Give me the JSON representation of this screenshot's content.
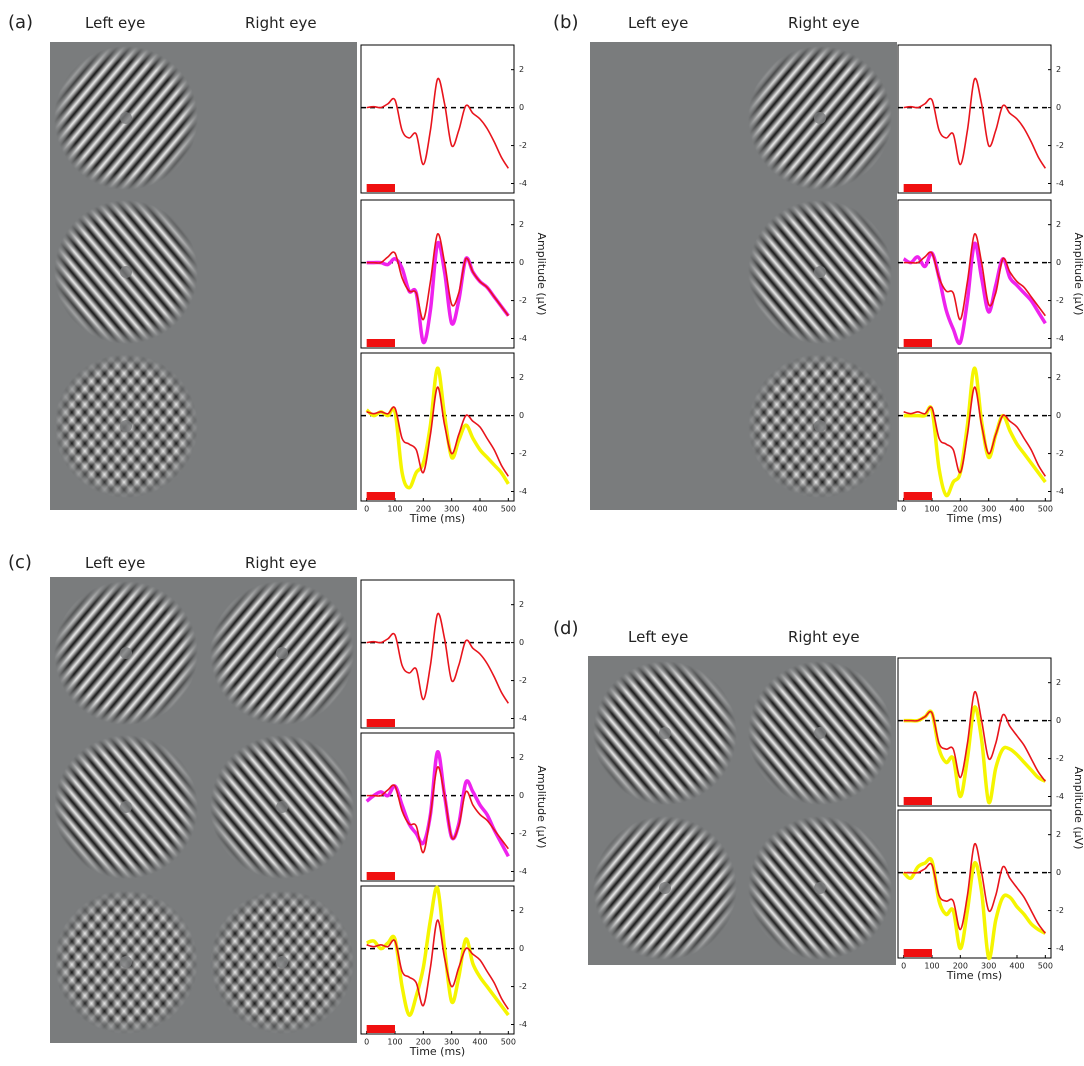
{
  "panels": [
    {
      "label": "(a)",
      "left_eye": "Left eye",
      "right_eye": "Right eye"
    },
    {
      "label": "(b)",
      "left_eye": "Left eye",
      "right_eye": "Right eye"
    },
    {
      "label": "(c)",
      "left_eye": "Left eye",
      "right_eye": "Right eye"
    },
    {
      "label": "(d)",
      "left_eye": "Left eye",
      "right_eye": "Right eye"
    }
  ],
  "chart_data": [
    {
      "type": "line",
      "x": [
        0,
        25,
        50,
        75,
        100,
        125,
        150,
        175,
        200,
        225,
        250,
        275,
        300,
        325,
        350,
        375,
        400,
        425,
        450,
        475,
        500
      ],
      "xlim": [
        -20,
        520
      ],
      "ylim": [
        -4.5,
        3.3
      ],
      "yticks": [
        2,
        0,
        -2,
        -4
      ],
      "stimulus_window": [
        0,
        100
      ],
      "series": [
        {
          "color": "#e8141c",
          "values": [
            0,
            0.05,
            0,
            0.2,
            0.4,
            -1.2,
            -1.6,
            -1.4,
            -3.0,
            -1.2,
            1.5,
            0.2,
            -2.0,
            -1.2,
            0.1,
            -0.3,
            -0.6,
            -1.1,
            -1.8,
            -2.6,
            -3.2
          ]
        }
      ]
    },
    {
      "type": "line",
      "x": [
        0,
        25,
        50,
        75,
        100,
        125,
        150,
        175,
        200,
        225,
        250,
        275,
        300,
        325,
        350,
        375,
        400,
        425,
        450,
        475,
        500
      ],
      "xlim": [
        -20,
        520
      ],
      "ylim": [
        -4.5,
        3.3
      ],
      "yticks": [
        2,
        0,
        -2,
        -4
      ],
      "stimulus_window": [
        0,
        100
      ],
      "ylabel": "Amplitude (µV)",
      "series": [
        {
          "color": "#ee22ee",
          "values": [
            0,
            0,
            0,
            -0.1,
            0.2,
            -0.3,
            -1.5,
            -1.6,
            -4.2,
            -2.5,
            1.0,
            -0.5,
            -3.2,
            -2.0,
            0.2,
            -0.5,
            -1.0,
            -1.3,
            -1.8,
            -2.3,
            -2.8
          ]
        },
        {
          "color": "#e8141c",
          "values": [
            0,
            0,
            0,
            0.3,
            0.5,
            -0.8,
            -1.5,
            -1.6,
            -3.0,
            -1.0,
            1.5,
            0,
            -2.2,
            -1.6,
            0.2,
            -0.5,
            -1.0,
            -1.3,
            -1.8,
            -2.3,
            -2.8
          ]
        }
      ]
    },
    {
      "type": "line",
      "x": [
        0,
        25,
        50,
        75,
        100,
        125,
        150,
        175,
        200,
        225,
        250,
        275,
        300,
        325,
        350,
        375,
        400,
        425,
        450,
        475,
        500
      ],
      "xlim": [
        -20,
        520
      ],
      "ylim": [
        -4.5,
        3.3
      ],
      "yticks": [
        2,
        0,
        -2,
        -4
      ],
      "xticks": [
        0,
        100,
        200,
        300,
        400,
        500
      ],
      "stimulus_window": [
        0,
        100
      ],
      "xlabel": "Time (ms)",
      "series": [
        {
          "color": "#f5f500",
          "values": [
            0.3,
            0,
            0.2,
            0,
            0.2,
            -3.0,
            -3.8,
            -3.0,
            -2.5,
            -0.5,
            2.5,
            0,
            -2.2,
            -1.3,
            -0.5,
            -1.2,
            -1.8,
            -2.2,
            -2.6,
            -3.0,
            -3.6
          ]
        },
        {
          "color": "#e8141c",
          "values": [
            0.2,
            0.1,
            0.2,
            0.1,
            0.4,
            -1.2,
            -1.5,
            -1.8,
            -3.0,
            -1.0,
            1.5,
            -0.5,
            -2.0,
            -1.0,
            0,
            -0.3,
            -0.6,
            -1.2,
            -1.8,
            -2.6,
            -3.2
          ]
        }
      ]
    },
    {
      "type": "line",
      "x": [
        0,
        25,
        50,
        75,
        100,
        125,
        150,
        175,
        200,
        225,
        250,
        275,
        300,
        325,
        350,
        375,
        400,
        425,
        450,
        475,
        500
      ],
      "xlim": [
        -20,
        520
      ],
      "ylim": [
        -4.5,
        3.3
      ],
      "yticks": [
        2,
        0,
        -2,
        -4
      ],
      "stimulus_window": [
        0,
        100
      ],
      "series": [
        {
          "color": "#e8141c",
          "values": [
            0,
            0.05,
            0,
            0.2,
            0.4,
            -1.2,
            -1.6,
            -1.4,
            -3.0,
            -1.2,
            1.5,
            0.2,
            -2.0,
            -1.2,
            0.1,
            -0.3,
            -0.6,
            -1.1,
            -1.8,
            -2.6,
            -3.2
          ]
        }
      ]
    },
    {
      "type": "line",
      "x": [
        0,
        25,
        50,
        75,
        100,
        125,
        150,
        175,
        200,
        225,
        250,
        275,
        300,
        325,
        350,
        375,
        400,
        425,
        450,
        475,
        500
      ],
      "xlim": [
        -20,
        520
      ],
      "ylim": [
        -4.5,
        3.3
      ],
      "yticks": [
        2,
        0,
        -2,
        -4
      ],
      "stimulus_window": [
        0,
        100
      ],
      "ylabel": "Amplitude (µV)",
      "series": [
        {
          "color": "#ee22ee",
          "values": [
            0.2,
            0,
            0.3,
            -0.2,
            0.5,
            -0.8,
            -2.5,
            -3.5,
            -4.2,
            -2.0,
            1.0,
            -0.8,
            -2.6,
            -1.2,
            0.2,
            -0.8,
            -1.2,
            -1.6,
            -2.0,
            -2.6,
            -3.2
          ]
        },
        {
          "color": "#e8141c",
          "values": [
            0,
            0,
            0,
            0.3,
            0.5,
            -0.8,
            -1.5,
            -1.6,
            -3.0,
            -1.0,
            1.5,
            0,
            -2.2,
            -1.6,
            0.2,
            -0.5,
            -1.0,
            -1.3,
            -1.8,
            -2.3,
            -2.8
          ]
        }
      ]
    },
    {
      "type": "line",
      "x": [
        0,
        25,
        50,
        75,
        100,
        125,
        150,
        175,
        200,
        225,
        250,
        275,
        300,
        325,
        350,
        375,
        400,
        425,
        450,
        475,
        500
      ],
      "xlim": [
        -20,
        520
      ],
      "ylim": [
        -4.5,
        3.3
      ],
      "yticks": [
        2,
        0,
        -2,
        -4
      ],
      "xticks": [
        0,
        100,
        200,
        300,
        400,
        500
      ],
      "stimulus_window": [
        0,
        100
      ],
      "xlabel": "Time (ms)",
      "series": [
        {
          "color": "#f5f500",
          "values": [
            0,
            0,
            0,
            0,
            0.3,
            -2.8,
            -4.2,
            -3.5,
            -3.0,
            -0.5,
            2.5,
            -0.3,
            -2.2,
            -1.0,
            0,
            -0.8,
            -1.5,
            -2.0,
            -2.5,
            -3.0,
            -3.5
          ]
        },
        {
          "color": "#e8141c",
          "values": [
            0.2,
            0.1,
            0.2,
            0.1,
            0.4,
            -1.2,
            -1.5,
            -1.8,
            -3.0,
            -1.0,
            1.5,
            -0.5,
            -2.0,
            -1.0,
            0,
            -0.3,
            -0.6,
            -1.2,
            -1.8,
            -2.6,
            -3.2
          ]
        }
      ]
    },
    {
      "type": "line",
      "x": [
        0,
        25,
        50,
        75,
        100,
        125,
        150,
        175,
        200,
        225,
        250,
        275,
        300,
        325,
        350,
        375,
        400,
        425,
        450,
        475,
        500
      ],
      "xlim": [
        -20,
        520
      ],
      "ylim": [
        -4.5,
        3.3
      ],
      "yticks": [
        2,
        0,
        -2,
        -4
      ],
      "stimulus_window": [
        0,
        100
      ],
      "series": [
        {
          "color": "#e8141c",
          "values": [
            0,
            0.05,
            0,
            0.2,
            0.4,
            -1.2,
            -1.6,
            -1.4,
            -3.0,
            -1.2,
            1.5,
            0.2,
            -2.0,
            -1.2,
            0.1,
            -0.3,
            -0.6,
            -1.1,
            -1.8,
            -2.6,
            -3.2
          ]
        }
      ]
    },
    {
      "type": "line",
      "x": [
        0,
        25,
        50,
        75,
        100,
        125,
        150,
        175,
        200,
        225,
        250,
        275,
        300,
        325,
        350,
        375,
        400,
        425,
        450,
        475,
        500
      ],
      "xlim": [
        -20,
        520
      ],
      "ylim": [
        -4.5,
        3.3
      ],
      "yticks": [
        2,
        0,
        -2,
        -4
      ],
      "stimulus_window": [
        0,
        100
      ],
      "ylabel": "Amplitude (µV)",
      "series": [
        {
          "color": "#ee22ee",
          "values": [
            -0.3,
            0,
            0.2,
            0,
            0.5,
            -0.5,
            -1.5,
            -2.0,
            -2.5,
            -1.0,
            2.3,
            0,
            -2.2,
            -1.5,
            0.7,
            0.2,
            -0.5,
            -1.0,
            -1.8,
            -2.5,
            -3.2
          ]
        },
        {
          "color": "#e8141c",
          "values": [
            0,
            0,
            0,
            0.3,
            0.5,
            -0.8,
            -1.5,
            -1.6,
            -3.0,
            -1.0,
            1.5,
            0,
            -2.2,
            -1.6,
            0.2,
            -0.5,
            -1.0,
            -1.3,
            -1.8,
            -2.3,
            -2.8
          ]
        }
      ]
    },
    {
      "type": "line",
      "x": [
        0,
        25,
        50,
        75,
        100,
        125,
        150,
        175,
        200,
        225,
        250,
        275,
        300,
        325,
        350,
        375,
        400,
        425,
        450,
        475,
        500
      ],
      "xlim": [
        -20,
        520
      ],
      "ylim": [
        -4.5,
        3.3
      ],
      "yticks": [
        2,
        0,
        -2,
        -4
      ],
      "xticks": [
        0,
        100,
        200,
        300,
        400,
        500
      ],
      "stimulus_window": [
        0,
        100
      ],
      "xlabel": "Time (ms)",
      "series": [
        {
          "color": "#f5f500",
          "values": [
            0.3,
            0.4,
            0,
            0.3,
            0.5,
            -2.0,
            -3.5,
            -2.5,
            -1.0,
            1.5,
            3.2,
            0,
            -2.8,
            -1.5,
            0.5,
            -0.8,
            -1.5,
            -2,
            -2.5,
            -3,
            -3.5
          ]
        },
        {
          "color": "#e8141c",
          "values": [
            0.2,
            0.1,
            0.2,
            0.1,
            0.4,
            -1.2,
            -1.5,
            -1.8,
            -3.0,
            -1.0,
            1.5,
            -0.5,
            -2.0,
            -1.0,
            0,
            -0.3,
            -0.6,
            -1.2,
            -1.8,
            -2.6,
            -3.2
          ]
        }
      ]
    },
    {
      "type": "line",
      "x": [
        0,
        25,
        50,
        75,
        100,
        125,
        150,
        175,
        200,
        225,
        250,
        275,
        300,
        325,
        350,
        375,
        400,
        425,
        450,
        475,
        500
      ],
      "xlim": [
        -20,
        520
      ],
      "ylim": [
        -4.5,
        3.3
      ],
      "yticks": [
        2,
        0,
        -2,
        -4
      ],
      "stimulus_window": [
        0,
        100
      ],
      "ylabel": "Amplitude (µV)",
      "series": [
        {
          "color": "#f5f500",
          "values": [
            0,
            0,
            0,
            0.2,
            0.4,
            -1.5,
            -2.2,
            -2.0,
            -4.0,
            -2.0,
            0.7,
            -1.0,
            -4.3,
            -2.5,
            -1.5,
            -1.5,
            -1.8,
            -2.2,
            -2.6,
            -3.0,
            -3.2
          ]
        },
        {
          "color": "#e8141c",
          "values": [
            0,
            0,
            0,
            0.2,
            0.4,
            -1.2,
            -1.5,
            -1.5,
            -3.0,
            -1.2,
            1.5,
            0,
            -2.0,
            -1.2,
            0.3,
            -0.3,
            -0.8,
            -1.3,
            -2.0,
            -2.7,
            -3.2
          ]
        }
      ]
    },
    {
      "type": "line",
      "x": [
        0,
        25,
        50,
        75,
        100,
        125,
        150,
        175,
        200,
        225,
        250,
        275,
        300,
        325,
        350,
        375,
        400,
        425,
        450,
        475,
        500
      ],
      "xlim": [
        -20,
        520
      ],
      "ylim": [
        -4.5,
        3.3
      ],
      "yticks": [
        2,
        0,
        -2,
        -4
      ],
      "xticks": [
        0,
        100,
        200,
        300,
        400,
        500
      ],
      "stimulus_window": [
        0,
        100
      ],
      "xlabel": "Time (ms)",
      "series": [
        {
          "color": "#f5f500",
          "values": [
            0,
            -0.3,
            0.3,
            0.5,
            0.6,
            -1.5,
            -2.2,
            -2.0,
            -4.0,
            -2.0,
            0.5,
            -1.0,
            -4.5,
            -2.5,
            -1.3,
            -1.3,
            -1.8,
            -2.2,
            -2.7,
            -3.0,
            -3.2
          ]
        },
        {
          "color": "#e8141c",
          "values": [
            0,
            0,
            0,
            0.2,
            0.4,
            -1.2,
            -1.5,
            -1.5,
            -3.0,
            -1.2,
            1.5,
            0,
            -2.0,
            -1.2,
            0.3,
            -0.3,
            -0.8,
            -1.3,
            -2.0,
            -2.7,
            -3.2
          ]
        }
      ]
    }
  ]
}
